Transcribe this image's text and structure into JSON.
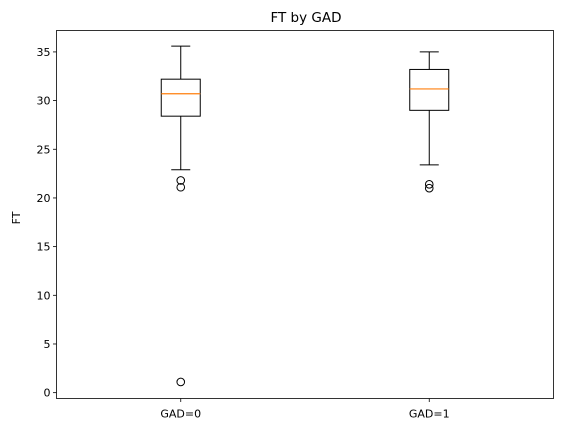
{
  "chart_data": {
    "type": "box",
    "title": "FT by GAD",
    "xlabel": "",
    "ylabel": "FT",
    "ylim": [
      -0.6,
      37.2
    ],
    "yticks": [
      0,
      5,
      10,
      15,
      20,
      25,
      30,
      35
    ],
    "grid": false,
    "categories": [
      "GAD=0",
      "GAD=1"
    ],
    "boxes": [
      {
        "category": "GAD=0",
        "whisker_low": 22.9,
        "q1": 28.4,
        "median": 30.7,
        "q3": 32.2,
        "whisker_high": 35.6,
        "outliers": [
          21.8,
          21.1,
          1.1
        ]
      },
      {
        "category": "GAD=1",
        "whisker_low": 23.4,
        "q1": 29.0,
        "median": 31.2,
        "q3": 33.2,
        "whisker_high": 35.0,
        "outliers": [
          21.4,
          21.0
        ]
      }
    ],
    "colors": {
      "box": "#000000",
      "median": "#ff7f0e",
      "whisker": "#000000",
      "outlier": "#000000"
    }
  }
}
